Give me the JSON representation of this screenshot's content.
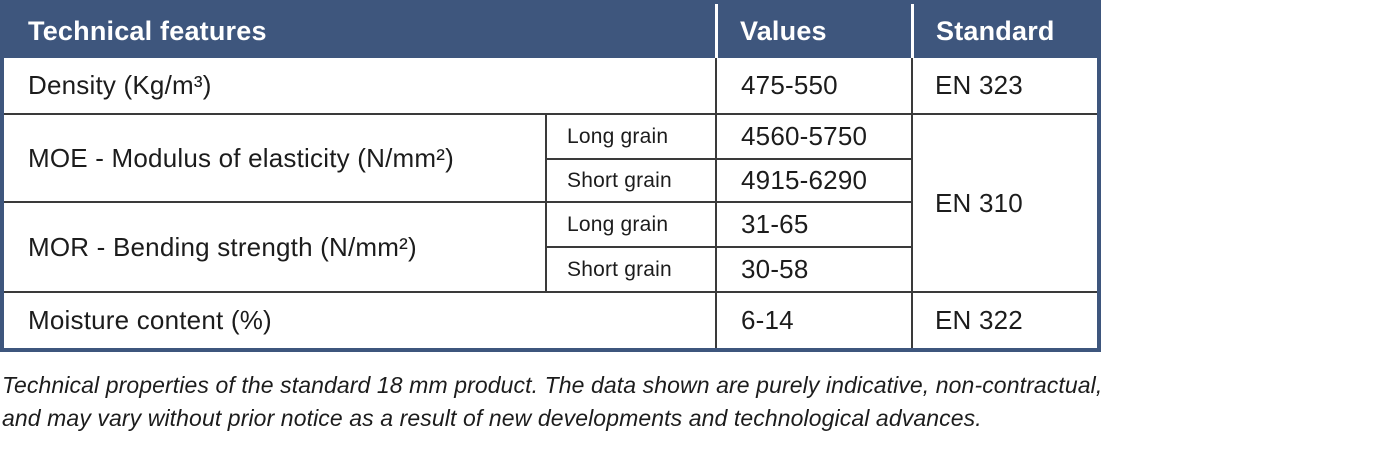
{
  "colors": {
    "header_bg": "#3e567d",
    "border_blue": "#3e567d",
    "line_dark": "#3a3a3a",
    "header_text": "#ffffff",
    "body_text": "#1c1c1c"
  },
  "table": {
    "headers": {
      "feature": "Technical features",
      "values": "Values",
      "standard": "Standard"
    },
    "rows": {
      "density": {
        "feature": "Density (Kg/m³)",
        "value": "475-550",
        "standard": "EN 323"
      },
      "moe": {
        "feature": "MOE - Modulus of elasticity (N/mm²)",
        "long_label": "Long grain",
        "long_value": "4560-5750",
        "short_label": "Short grain",
        "short_value": "4915-6290"
      },
      "mor": {
        "feature": "MOR - Bending strength (N/mm²)",
        "long_label": "Long grain",
        "long_value": "31-65",
        "short_label": "Short grain",
        "short_value": "30-58"
      },
      "moe_mor_standard": "EN 310",
      "moisture": {
        "feature": "Moisture content (%)",
        "value": "6-14",
        "standard": "EN 322"
      }
    }
  },
  "caption": {
    "text": "Technical properties of the standard 18 mm product. The data shown are purely indicative, non-contractual,\nand may vary without prior notice as a result of new developments and technological advances."
  }
}
